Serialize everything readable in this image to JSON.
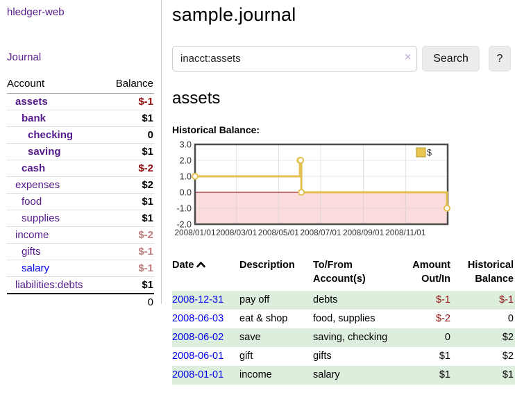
{
  "app": {
    "brand": "hledger-web"
  },
  "sidebar": {
    "journal_link": "Journal",
    "accounts": {
      "header_account": "Account",
      "header_balance": "Balance",
      "rows": [
        {
          "name": "assets",
          "balance": "$-1",
          "level": 0,
          "bold": true,
          "balance_style": "neg-strong",
          "link": "visited"
        },
        {
          "name": "bank",
          "balance": "$1",
          "level": 1,
          "bold": true,
          "balance_style": "",
          "link": "visited"
        },
        {
          "name": "checking",
          "balance": "0",
          "level": 2,
          "bold": true,
          "balance_style": "",
          "link": "visited"
        },
        {
          "name": "saving",
          "balance": "$1",
          "level": 2,
          "bold": true,
          "balance_style": "",
          "link": "visited"
        },
        {
          "name": "cash",
          "balance": "$-2",
          "level": 1,
          "bold": true,
          "balance_style": "neg-strong",
          "link": "visited"
        },
        {
          "name": "expenses",
          "balance": "$2",
          "level": 0,
          "bold": false,
          "balance_style": "",
          "link": "visited"
        },
        {
          "name": "food",
          "balance": "$1",
          "level": 1,
          "bold": false,
          "balance_style": "",
          "link": "visited"
        },
        {
          "name": "supplies",
          "balance": "$1",
          "level": 1,
          "bold": false,
          "balance_style": "",
          "link": "visited"
        },
        {
          "name": "income",
          "balance": "$-2",
          "level": 0,
          "bold": false,
          "balance_style": "neg-light",
          "link": "visited"
        },
        {
          "name": "gifts",
          "balance": "$-1",
          "level": 1,
          "bold": false,
          "balance_style": "neg-light",
          "link": "visited"
        },
        {
          "name": "salary",
          "balance": "$-1",
          "level": 1,
          "bold": false,
          "balance_style": "neg-light",
          "link": "new"
        },
        {
          "name": "liabilities:debts",
          "balance": "$1",
          "level": 0,
          "bold": false,
          "balance_style": "",
          "link": "visited"
        }
      ],
      "total": "0"
    }
  },
  "header": {
    "title": "sample.journal"
  },
  "search": {
    "value": "inacct:assets",
    "clear_icon": "×",
    "search_label": "Search",
    "help_label": "?"
  },
  "account_page": {
    "title": "assets",
    "chart_label": "Historical Balance:"
  },
  "chart_data": {
    "type": "line",
    "step": true,
    "title": "Historical Balance:",
    "legend": "$",
    "legend_position": "top-right",
    "grid": true,
    "ylim": [
      -2,
      3
    ],
    "y_ticks": [
      "3.0",
      "2.0",
      "1.0",
      "0.0",
      "-1.0",
      "-2.0"
    ],
    "x_ticks": [
      "2008/01/01",
      "2008/03/01",
      "2008/05/01",
      "2008/07/01",
      "2008/09/01",
      "2008/11/01"
    ],
    "series": [
      {
        "name": "$",
        "points": [
          {
            "date": "2008-01-01",
            "value": 1
          },
          {
            "date": "2008-06-01",
            "value": 2
          },
          {
            "date": "2008-06-02",
            "value": 2
          },
          {
            "date": "2008-06-03",
            "value": 0
          },
          {
            "date": "2008-12-31",
            "value": -1
          }
        ]
      }
    ],
    "negative_region_shaded": true,
    "colors": {
      "line": "#E3C04F",
      "marker_fill": "#ffffff",
      "negative_fill": "#FADCDC",
      "zero_line": "#8B0000",
      "border": "#4A4A4A",
      "grid": "#cccccc",
      "legend_fill": "#E8C64F",
      "legend_border": "#B3952F"
    }
  },
  "register_table": {
    "columns": [
      "Date",
      "Description",
      "To/From Account(s)",
      "Amount Out/In",
      "Historical Balance"
    ],
    "sort_icon": "ascending-chevron",
    "rows": [
      {
        "date": "2008-12-31",
        "description": "pay off",
        "accounts": "debts",
        "amount": "$-1",
        "balance": "$-1",
        "amount_neg": true,
        "balance_neg": true,
        "stripe": true
      },
      {
        "date": "2008-06-03",
        "description": "eat & shop",
        "accounts": "food, supplies",
        "amount": "$-2",
        "balance": "0",
        "amount_neg": true,
        "balance_neg": false,
        "stripe": false
      },
      {
        "date": "2008-06-02",
        "description": "save",
        "accounts": "saving, checking",
        "amount": "0",
        "balance": "$2",
        "amount_neg": false,
        "balance_neg": false,
        "stripe": true
      },
      {
        "date": "2008-06-01",
        "description": "gift",
        "accounts": "gifts",
        "amount": "$1",
        "balance": "$2",
        "amount_neg": false,
        "balance_neg": false,
        "stripe": false
      },
      {
        "date": "2008-01-01",
        "description": "income",
        "accounts": "salary",
        "amount": "$1",
        "balance": "$1",
        "amount_neg": false,
        "balance_neg": false,
        "stripe": true
      }
    ]
  },
  "colors": {
    "link_visited": "#551A8B",
    "link_new": "#0000EE",
    "negative_strong": "#8F0E0E",
    "negative_light": "#C17D7D",
    "row_stripe_green": "#ddeedd",
    "sidebar_border": "#cccccc"
  }
}
